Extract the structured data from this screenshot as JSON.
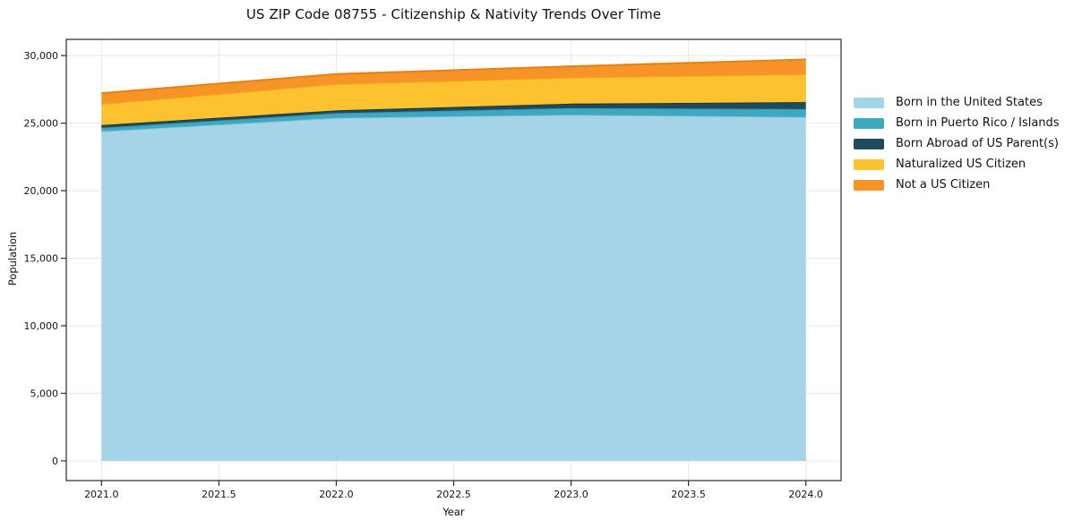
{
  "chart_data": {
    "type": "area",
    "stacked": true,
    "title": "US ZIP Code 08755 - Citizenship & Nativity Trends Over Time",
    "xlabel": "Year",
    "ylabel": "Population",
    "x": [
      2021,
      2022,
      2023,
      2024
    ],
    "xlim": [
      2020.85,
      2024.15
    ],
    "ylim": [
      -1460,
      31200
    ],
    "grid": true,
    "legend_position": "right-outside",
    "xticks": [
      {
        "v": 2021.0,
        "label": "2021.0"
      },
      {
        "v": 2021.5,
        "label": "2021.5"
      },
      {
        "v": 2022.0,
        "label": "2022.0"
      },
      {
        "v": 2022.5,
        "label": "2022.5"
      },
      {
        "v": 2023.0,
        "label": "2023.0"
      },
      {
        "v": 2023.5,
        "label": "2023.5"
      },
      {
        "v": 2024.0,
        "label": "2024.0"
      }
    ],
    "yticks": [
      {
        "v": 0,
        "label": "0"
      },
      {
        "v": 5000,
        "label": "5,000"
      },
      {
        "v": 10000,
        "label": "10,000"
      },
      {
        "v": 15000,
        "label": "15,000"
      },
      {
        "v": 20000,
        "label": "20,000"
      },
      {
        "v": 25000,
        "label": "25,000"
      },
      {
        "v": 30000,
        "label": "30,000"
      }
    ],
    "series": [
      {
        "name": "Born in the United States",
        "color": "#a5d3e8",
        "edge": "#8cc3db",
        "values": [
          24390,
          25385,
          25610,
          25450
        ]
      },
      {
        "name": "Born in Puerto Rico / Islands",
        "color": "#3ea8c1",
        "edge": "#3495ad",
        "values": [
          265,
          360,
          505,
          595
        ]
      },
      {
        "name": "Born Abroad of US Parent(s)",
        "color": "#1f4a5e",
        "edge": "#18394a",
        "values": [
          200,
          200,
          330,
          510
        ]
      },
      {
        "name": "Naturalized US Citizen",
        "color": "#fcc230",
        "edge": "#edb020",
        "values": [
          1550,
          1940,
          1920,
          2055
        ]
      },
      {
        "name": "Not a US Citizen",
        "color": "#f79428",
        "edge": "#e58211",
        "values": [
          815,
          750,
          840,
          1105
        ]
      }
    ]
  },
  "style": {
    "grid_color": "#e8e8e8",
    "spine_color": "#2a2a2a",
    "text_color": "#141414",
    "background": "#ffffff"
  }
}
